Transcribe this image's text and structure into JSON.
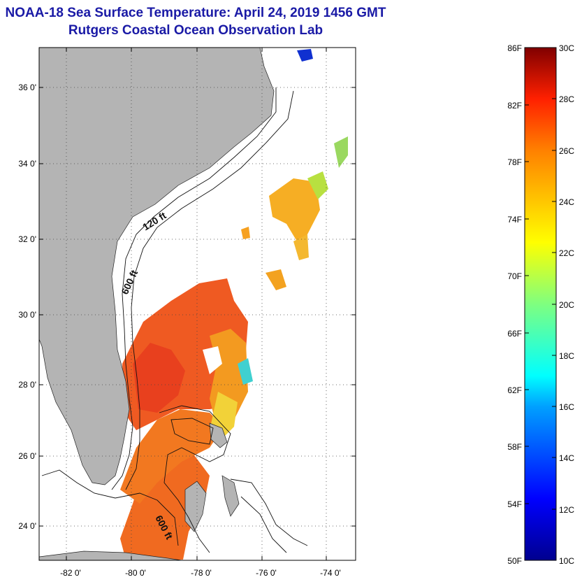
{
  "title": {
    "line1": "NOAA-18 Sea Surface Temperature:  April 24, 2019 1456 GMT",
    "line2": "Rutgers Coastal Ocean Observation Lab"
  },
  "map": {
    "lat_labels": [
      "36 0'",
      "34 0'",
      "32 0'",
      "30 0'",
      "28 0'",
      "26 0'",
      "24 0'"
    ],
    "lon_labels": [
      "-82 0'",
      "-80 0'",
      "-78 0'",
      "-76 0'",
      "-74 0'"
    ],
    "contour_labels": [
      "120 ft",
      "600 ft",
      "600 ft"
    ],
    "colors": {
      "land": "#b4b4b4",
      "ocean": "#ffffff",
      "warm_sst": "#f26a1c",
      "mid_sst": "#f6a522",
      "cool_sst": "#d8e23a",
      "cold_sst": "#1030d0"
    }
  },
  "colorbar": {
    "f_labels": [
      "86F",
      "82F",
      "78F",
      "74F",
      "70F",
      "66F",
      "62F",
      "58F",
      "54F",
      "50F"
    ],
    "c_labels": [
      "30C",
      "28C",
      "26C",
      "24C",
      "22C",
      "20C",
      "18C",
      "16C",
      "14C",
      "12C",
      "10C"
    ]
  }
}
